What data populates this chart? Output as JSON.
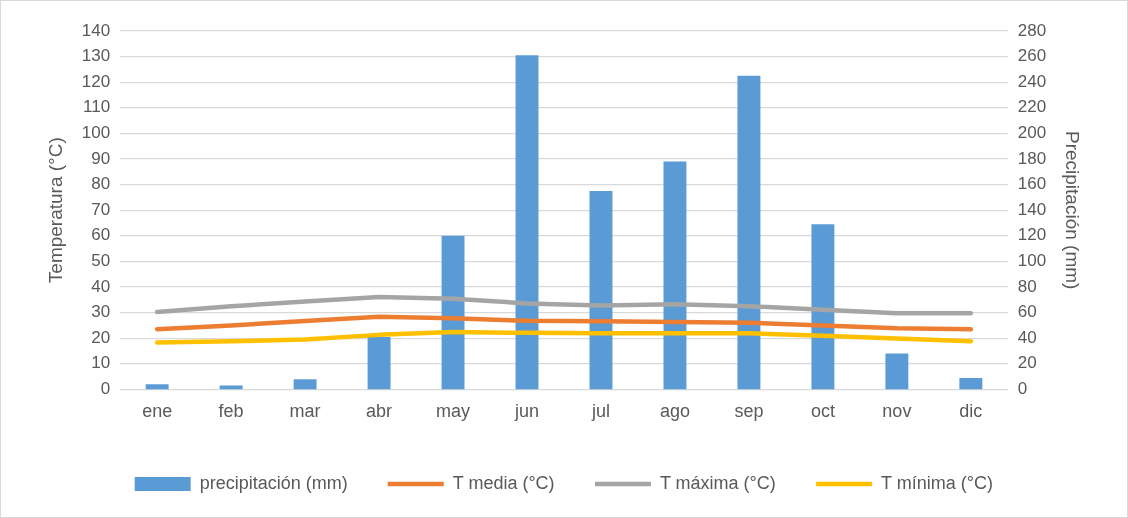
{
  "chart_data": {
    "type": "bar",
    "categories": [
      "ene",
      "feb",
      "mar",
      "abr",
      "may",
      "jun",
      "jul",
      "ago",
      "sep",
      "oct",
      "nov",
      "dic"
    ],
    "series": [
      {
        "name": "precipitación (mm)",
        "axis": "y2",
        "color": "#5b9bd5",
        "values": [
          4,
          3,
          8,
          41,
          120,
          261,
          155,
          178,
          245,
          129,
          28,
          9
        ]
      },
      {
        "name": "T media (°C)",
        "type": "line",
        "color": "#ed7d31",
        "values": [
          23.5,
          25,
          26.7,
          28.4,
          27.8,
          26.8,
          26.6,
          26.3,
          26,
          25,
          23.9,
          23.5
        ]
      },
      {
        "name": "T máxima (°C)",
        "type": "line",
        "color": "#a5a5a5",
        "values": [
          30.2,
          32.5,
          34.3,
          36.1,
          35.4,
          33.6,
          32.8,
          33.3,
          32.5,
          31.1,
          29.7,
          29.7
        ]
      },
      {
        "name": "T mínima (°C)",
        "type": "line",
        "color": "#ffc000",
        "values": [
          18.3,
          18.8,
          19.5,
          21.3,
          22.4,
          22.1,
          21.9,
          21.9,
          21.9,
          21,
          19.9,
          18.8
        ]
      }
    ],
    "ylabel": "Temperatura (°C)",
    "y2label": "Precipitación (mm)",
    "ylim": [
      0,
      140
    ],
    "yticks": [
      0,
      10,
      20,
      30,
      40,
      50,
      60,
      70,
      80,
      90,
      100,
      110,
      120,
      130,
      140
    ],
    "y2lim": [
      0,
      280
    ],
    "y2ticks": [
      0,
      20,
      40,
      60,
      80,
      100,
      120,
      140,
      160,
      180,
      200,
      220,
      240,
      260,
      280
    ],
    "grid": "y",
    "legend": "bottom",
    "marker": "none"
  }
}
